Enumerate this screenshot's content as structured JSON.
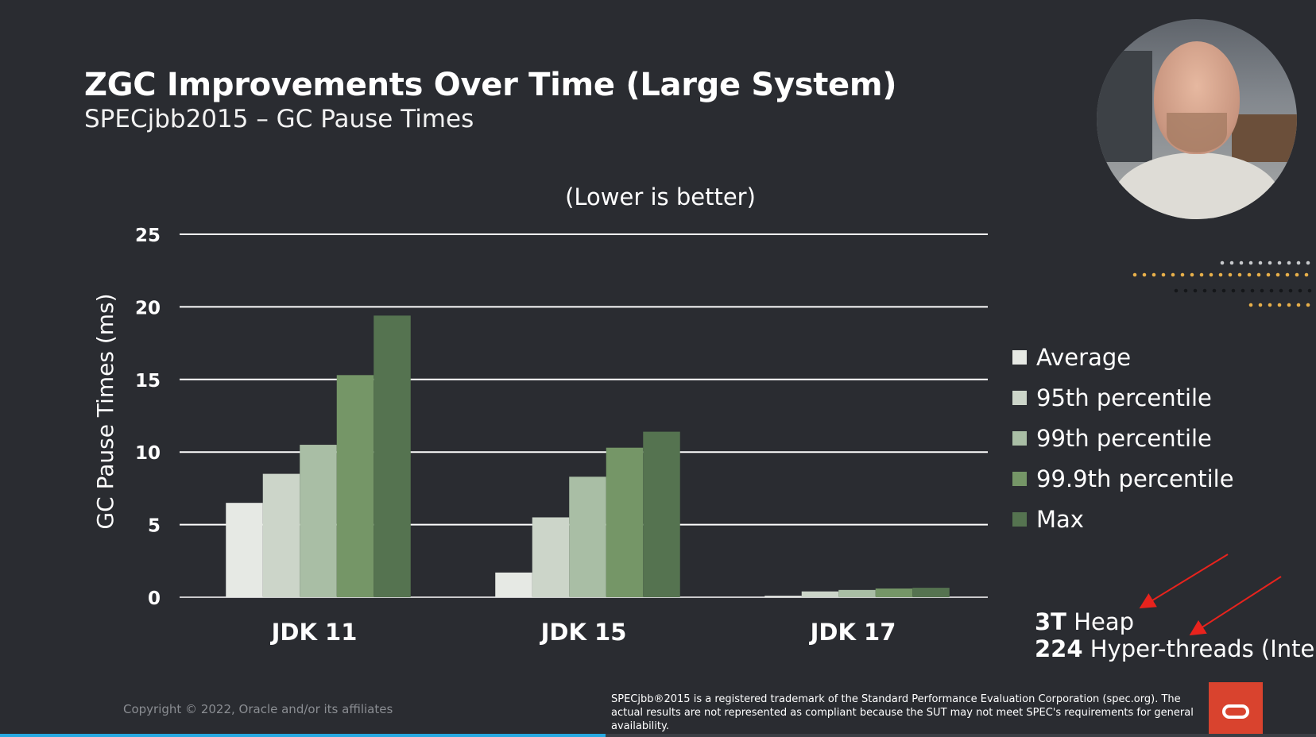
{
  "slide": {
    "title": "ZGC Improvements Over Time (Large System)",
    "subtitle": "SPECjbb2015 – GC Pause Times",
    "copyright": "Copyright © 2022, Oracle and/or its affiliates",
    "disclaimer": "SPECjbb®2015 is a registered trademark of the Standard Performance Evaluation Corporation (spec.org). The actual results are not represented as compliant because the SUT may not meet SPEC's requirements for general availability.",
    "system_info": {
      "heap_value": "3T",
      "heap_label": "Heap",
      "threads_value": "224",
      "threads_label": "Hyper-threads (Intel)"
    },
    "video_progress": 0.46
  },
  "chart_data": {
    "type": "bar",
    "title": "(Lower is better)",
    "xlabel": "",
    "ylabel": "GC Pause Times (ms)",
    "ylim": [
      0,
      25
    ],
    "yticks": [
      0,
      5,
      10,
      15,
      20,
      25
    ],
    "grid": true,
    "legend_position": "right",
    "categories": [
      "JDK 11",
      "JDK 15",
      "JDK 17"
    ],
    "series": [
      {
        "name": "Average",
        "color": "#e6e9e4",
        "values": [
          6.5,
          1.7,
          0.1
        ]
      },
      {
        "name": "95th percentile",
        "color": "#ccd5c9",
        "values": [
          8.5,
          5.5,
          0.4
        ]
      },
      {
        "name": "99th percentile",
        "color": "#a9bea5",
        "values": [
          10.5,
          8.3,
          0.5
        ]
      },
      {
        "name": "99.9th percentile",
        "color": "#759667",
        "values": [
          15.3,
          10.3,
          0.6
        ]
      },
      {
        "name": "Max",
        "color": "#557350",
        "values": [
          19.4,
          11.4,
          0.65
        ]
      }
    ]
  }
}
